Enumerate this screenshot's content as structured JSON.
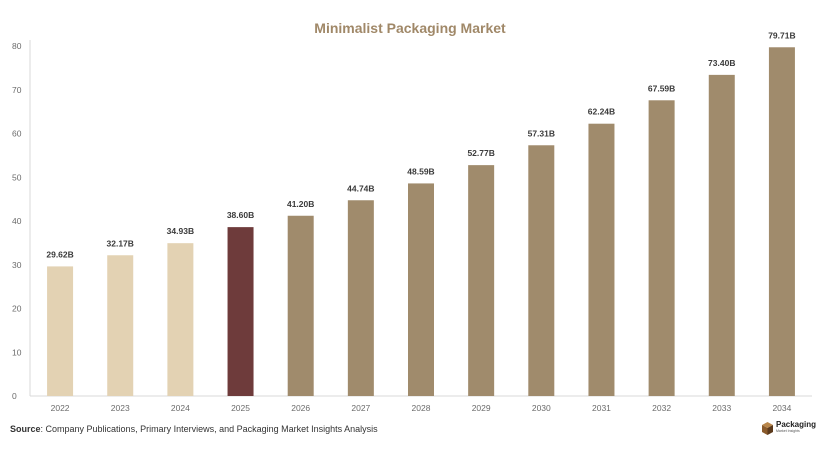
{
  "chart_data": {
    "type": "bar",
    "title": "Minimalist Packaging Market",
    "categories": [
      "2022",
      "2023",
      "2024",
      "2025",
      "2026",
      "2027",
      "2028",
      "2029",
      "2030",
      "2031",
      "2032",
      "2033",
      "2034"
    ],
    "values": [
      29.62,
      32.17,
      34.93,
      38.6,
      41.2,
      44.74,
      48.59,
      52.77,
      57.31,
      62.24,
      67.59,
      73.4,
      79.71
    ],
    "data_labels": [
      "29.62B",
      "32.17B",
      "34.93B",
      "38.60B",
      "41.20B",
      "44.74B",
      "48.59B",
      "52.77B",
      "57.31B",
      "62.24B",
      "67.59B",
      "73.40B",
      "79.71B"
    ],
    "ylim": [
      0,
      80
    ],
    "yticks": [
      0,
      10,
      20,
      30,
      40,
      50,
      60,
      70,
      80
    ],
    "xlabel": "",
    "ylabel": "",
    "grid": false,
    "bar_colors": {
      "historical": "#e3d2b3",
      "base_year": "#6e3b3b",
      "forecast": "#a08b6c"
    },
    "bar_periods": [
      "historical",
      "historical",
      "historical",
      "base_year",
      "forecast",
      "forecast",
      "forecast",
      "forecast",
      "forecast",
      "forecast",
      "forecast",
      "forecast",
      "forecast"
    ]
  },
  "footer": {
    "source_label": "Source",
    "source_text": ": Company Publications, Primary Interviews, and Packaging Market Insights Analysis"
  },
  "brand": {
    "name": "Packaging",
    "subtitle": "Market Insights"
  }
}
